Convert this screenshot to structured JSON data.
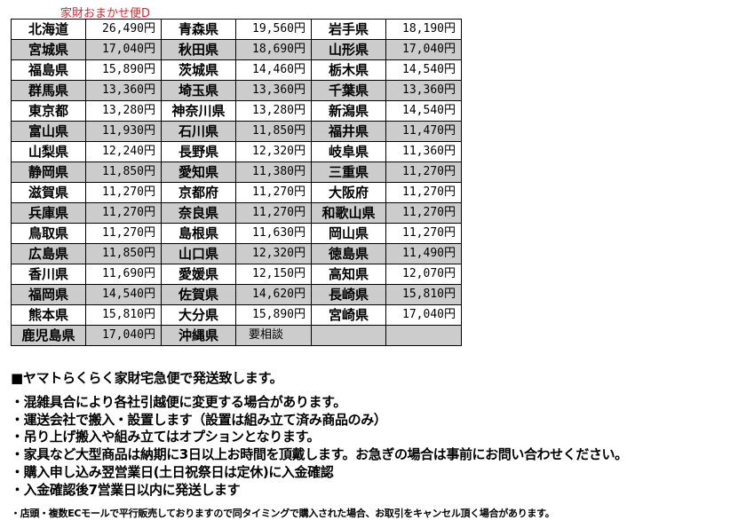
{
  "title": "家財おまかせ便D",
  "rows": [
    [
      [
        "北海道",
        "26,490円"
      ],
      [
        "青森県",
        "19,560円"
      ],
      [
        "岩手県",
        "18,190円"
      ]
    ],
    [
      [
        "宮城県",
        "17,040円"
      ],
      [
        "秋田県",
        "18,690円"
      ],
      [
        "山形県",
        "17,040円"
      ]
    ],
    [
      [
        "福島県",
        "15,890円"
      ],
      [
        "茨城県",
        "14,460円"
      ],
      [
        "栃木県",
        "14,540円"
      ]
    ],
    [
      [
        "群馬県",
        "13,360円"
      ],
      [
        "埼玉県",
        "13,360円"
      ],
      [
        "千葉県",
        "13,360円"
      ]
    ],
    [
      [
        "東京都",
        "13,280円"
      ],
      [
        "神奈川県",
        "13,280円"
      ],
      [
        "新潟県",
        "14,540円"
      ]
    ],
    [
      [
        "富山県",
        "11,930円"
      ],
      [
        "石川県",
        "11,850円"
      ],
      [
        "福井県",
        "11,470円"
      ]
    ],
    [
      [
        "山梨県",
        "12,240円"
      ],
      [
        "長野県",
        "12,320円"
      ],
      [
        "岐阜県",
        "11,360円"
      ]
    ],
    [
      [
        "静岡県",
        "11,850円"
      ],
      [
        "愛知県",
        "11,380円"
      ],
      [
        "三重県",
        "11,270円"
      ]
    ],
    [
      [
        "滋賀県",
        "11,270円"
      ],
      [
        "京都府",
        "11,270円"
      ],
      [
        "大阪府",
        "11,270円"
      ]
    ],
    [
      [
        "兵庫県",
        "11,270円"
      ],
      [
        "奈良県",
        "11,270円"
      ],
      [
        "和歌山県",
        "11,270円"
      ]
    ],
    [
      [
        "鳥取県",
        "11,270円"
      ],
      [
        "島根県",
        "11,630円"
      ],
      [
        "岡山県",
        "11,270円"
      ]
    ],
    [
      [
        "広島県",
        "11,850円"
      ],
      [
        "山口県",
        "12,320円"
      ],
      [
        "徳島県",
        "11,490円"
      ]
    ],
    [
      [
        "香川県",
        "11,690円"
      ],
      [
        "愛媛県",
        "12,150円"
      ],
      [
        "高知県",
        "12,070円"
      ]
    ],
    [
      [
        "福岡県",
        "14,540円"
      ],
      [
        "佐賀県",
        "14,620円"
      ],
      [
        "長崎県",
        "15,810円"
      ]
    ],
    [
      [
        "熊本県",
        "15,810円"
      ],
      [
        "大分県",
        "15,890円"
      ],
      [
        "宮崎県",
        "17,040円"
      ]
    ],
    [
      [
        "鹿児島県",
        "17,040円"
      ],
      [
        "沖縄県",
        "要相談"
      ],
      [
        "",
        ""
      ]
    ]
  ],
  "notes": {
    "heading": "■ヤマトらくらく家財宅急便で発送致します。",
    "lines": [
      "・混雑具合により各社引越便に変更する場合があります。",
      "・運送会社で搬入・設置します（設置は組み立て済み商品のみ）",
      "・吊り上げ搬入や組み立てはオプションとなります。",
      "・家具など大型商品は納期に3日以上お時間を頂戴します。お急ぎの場合は事前にお問い合わせください。",
      "・購入申し込み翌営業日(土日祝祭日は定休)に入金確認",
      "・入金確認後7営業日以内に発送します"
    ],
    "footnote": "・店頭・複数ECモールで平行販売しておりますので同タイミングで購入された場合、お取引をキャンセル頂く場合があります。"
  },
  "colors": {
    "title": "#e8202a",
    "row_alt": "#cccccc"
  }
}
